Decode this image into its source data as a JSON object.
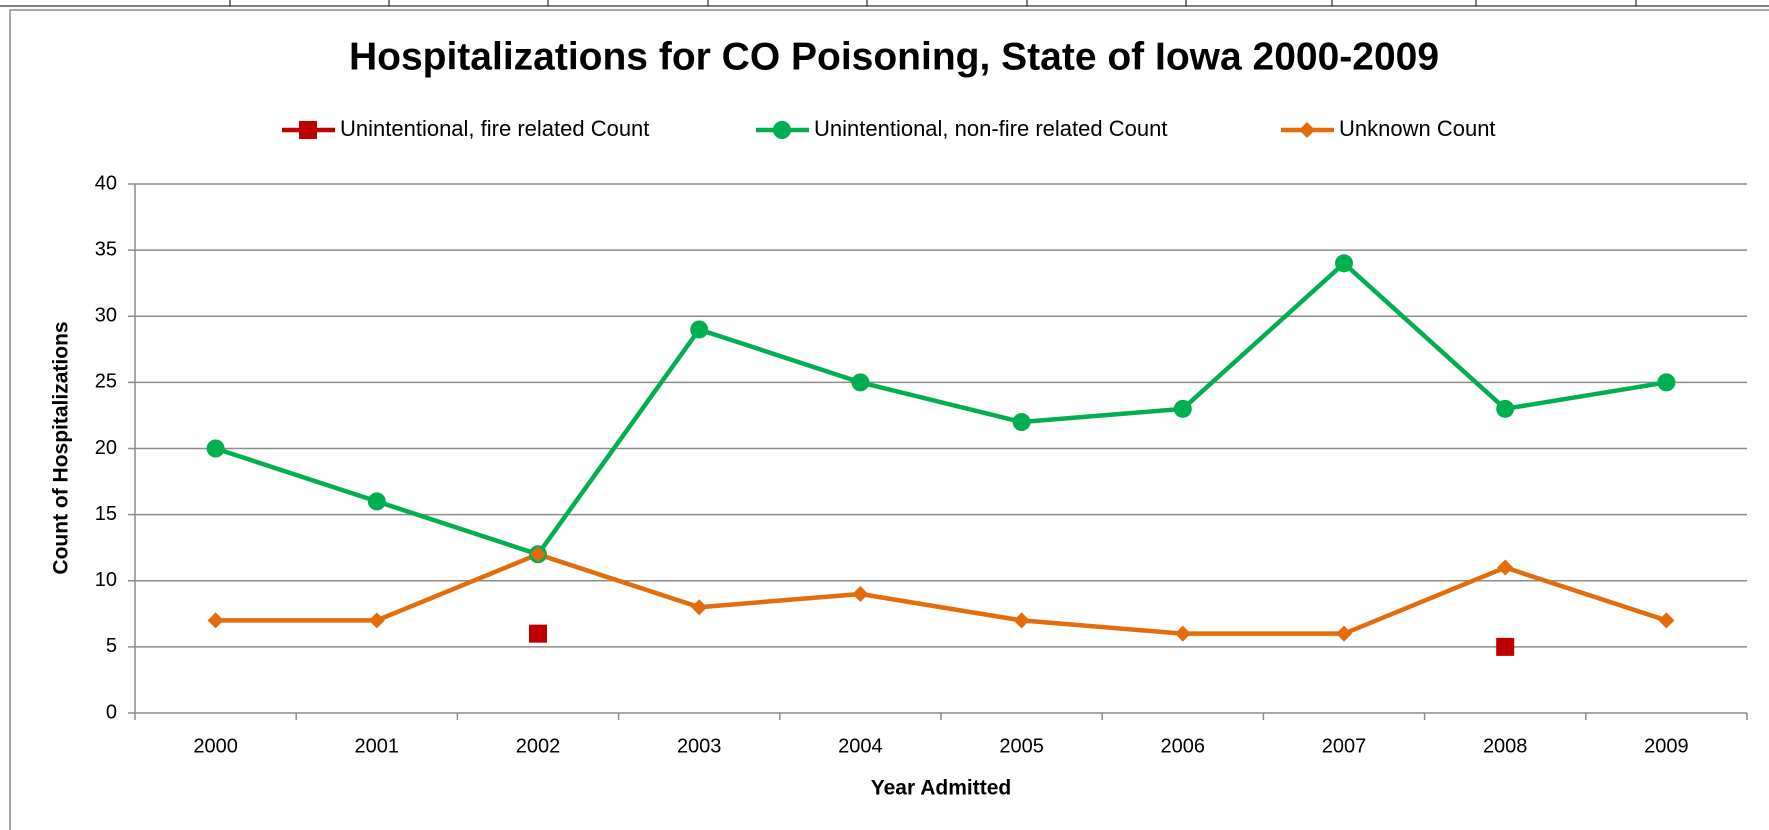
{
  "chart_data": {
    "type": "line",
    "title": "Hospitalizations for CO Poisoning, State of Iowa 2000-2009",
    "x_label": "Year Admitted",
    "y_label": "Count of Hospitalizations",
    "categories": [
      "2000",
      "2001",
      "2002",
      "2003",
      "2004",
      "2005",
      "2006",
      "2007",
      "2008",
      "2009"
    ],
    "series": [
      {
        "name": "Unintentional, fire related Count",
        "color": "#c00000",
        "marker": "square",
        "values": [
          null,
          null,
          6,
          null,
          null,
          null,
          null,
          null,
          5,
          null
        ]
      },
      {
        "name": "Unintentional, non-fire related Count",
        "color": "#00b050",
        "marker": "circle",
        "values": [
          20,
          16,
          12,
          29,
          25,
          22,
          23,
          34,
          23,
          25
        ]
      },
      {
        "name": "Unknown Count",
        "color": "#e46c0a",
        "marker": "diamond",
        "values": [
          7,
          7,
          12,
          8,
          9,
          7,
          6,
          6,
          11,
          7
        ]
      }
    ],
    "ylim": [
      0,
      40
    ],
    "yticks": [
      0,
      5,
      10,
      15,
      20,
      25,
      30,
      35,
      40
    ],
    "grid": true,
    "legend": "top"
  }
}
